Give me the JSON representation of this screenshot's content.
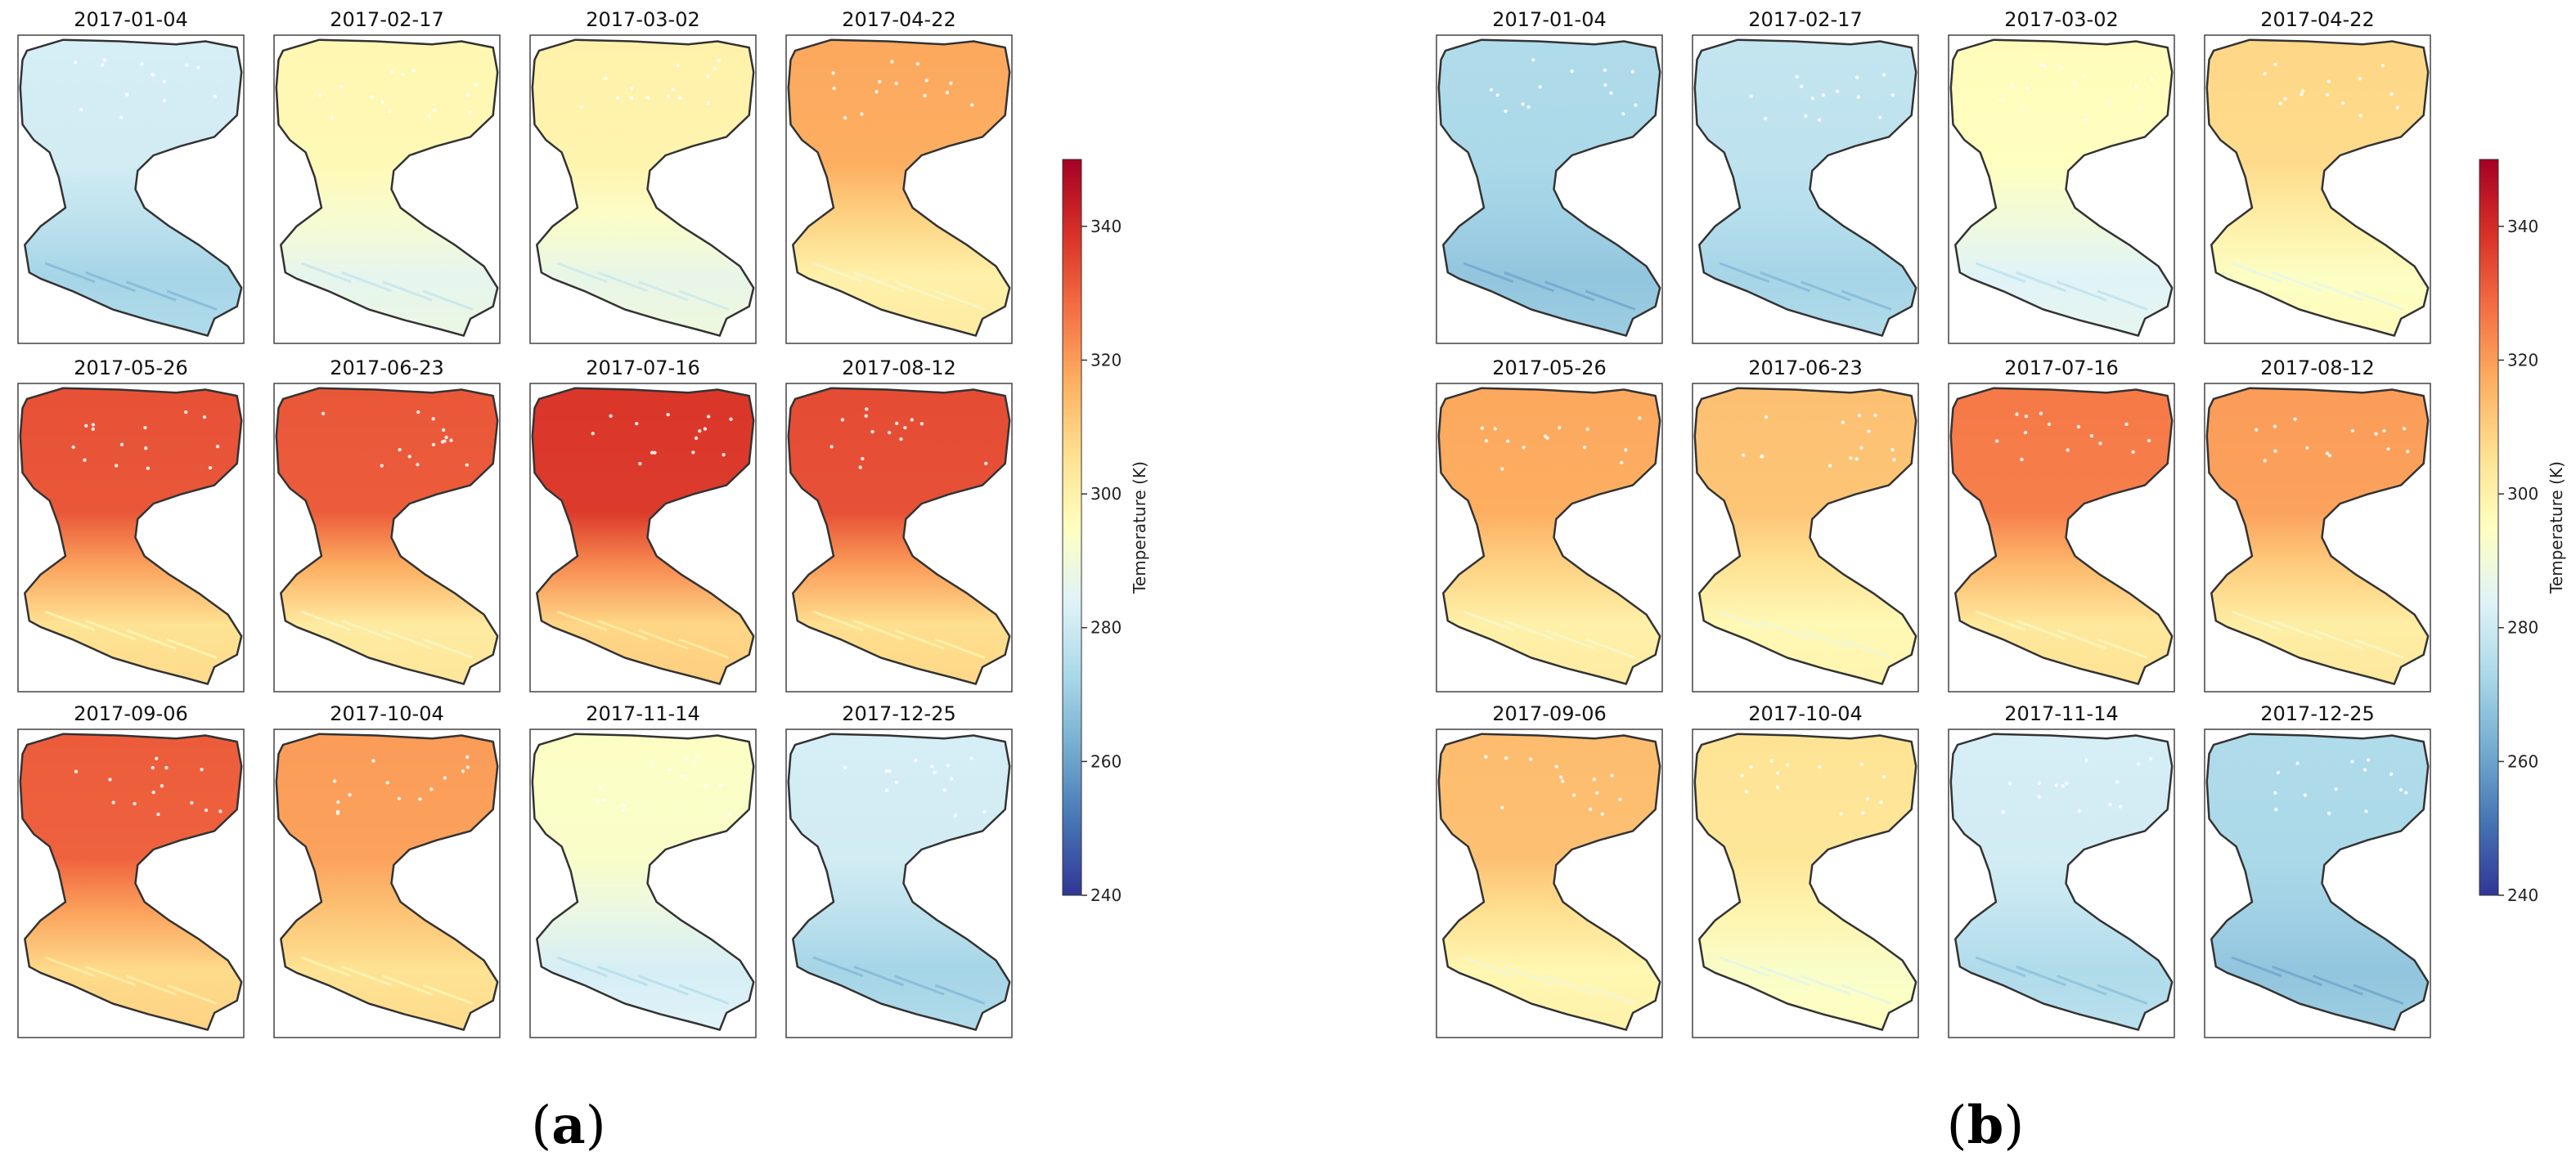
{
  "chart_data": [
    {
      "type": "heatmap",
      "panel_label": "a",
      "value_unit": "K",
      "colorbar": {
        "label": "Temperature (K)",
        "range": [
          240,
          350
        ],
        "ticks": [
          240,
          260,
          280,
          300,
          320,
          340
        ],
        "colormap": "RdYlBu_r"
      },
      "maps": [
        {
          "date": "2017-01-04",
          "north": 282,
          "south": 272
        },
        {
          "date": "2017-02-17",
          "north": 298,
          "south": 286
        },
        {
          "date": "2017-03-02",
          "north": 300,
          "south": 287
        },
        {
          "date": "2017-04-22",
          "north": 318,
          "south": 300
        },
        {
          "date": "2017-05-26",
          "north": 333,
          "south": 305
        },
        {
          "date": "2017-06-23",
          "north": 332,
          "south": 302
        },
        {
          "date": "2017-07-16",
          "north": 338,
          "south": 308
        },
        {
          "date": "2017-08-12",
          "north": 334,
          "south": 306
        },
        {
          "date": "2017-09-06",
          "north": 331,
          "south": 307
        },
        {
          "date": "2017-10-04",
          "north": 320,
          "south": 305
        },
        {
          "date": "2017-11-14",
          "north": 294,
          "south": 282
        },
        {
          "date": "2017-12-25",
          "north": 282,
          "south": 272
        }
      ]
    },
    {
      "type": "heatmap",
      "panel_label": "b",
      "value_unit": "K",
      "colorbar": {
        "label": "Temperature (K)",
        "range": [
          240,
          350
        ],
        "ticks": [
          240,
          260,
          280,
          300,
          320,
          340
        ],
        "colormap": "RdYlBu_r"
      },
      "maps": [
        {
          "date": "2017-01-04",
          "north": 274,
          "south": 268
        },
        {
          "date": "2017-02-17",
          "north": 278,
          "south": 272
        },
        {
          "date": "2017-03-02",
          "north": 296,
          "south": 284
        },
        {
          "date": "2017-04-22",
          "north": 308,
          "south": 294
        },
        {
          "date": "2017-05-26",
          "north": 318,
          "south": 300
        },
        {
          "date": "2017-06-23",
          "north": 313,
          "south": 297
        },
        {
          "date": "2017-07-16",
          "north": 326,
          "south": 303
        },
        {
          "date": "2017-08-12",
          "north": 320,
          "south": 301
        },
        {
          "date": "2017-09-06",
          "north": 314,
          "south": 298
        },
        {
          "date": "2017-10-04",
          "north": 305,
          "south": 293
        },
        {
          "date": "2017-11-14",
          "north": 282,
          "south": 274
        },
        {
          "date": "2017-12-25",
          "north": 274,
          "south": 268
        }
      ]
    }
  ]
}
